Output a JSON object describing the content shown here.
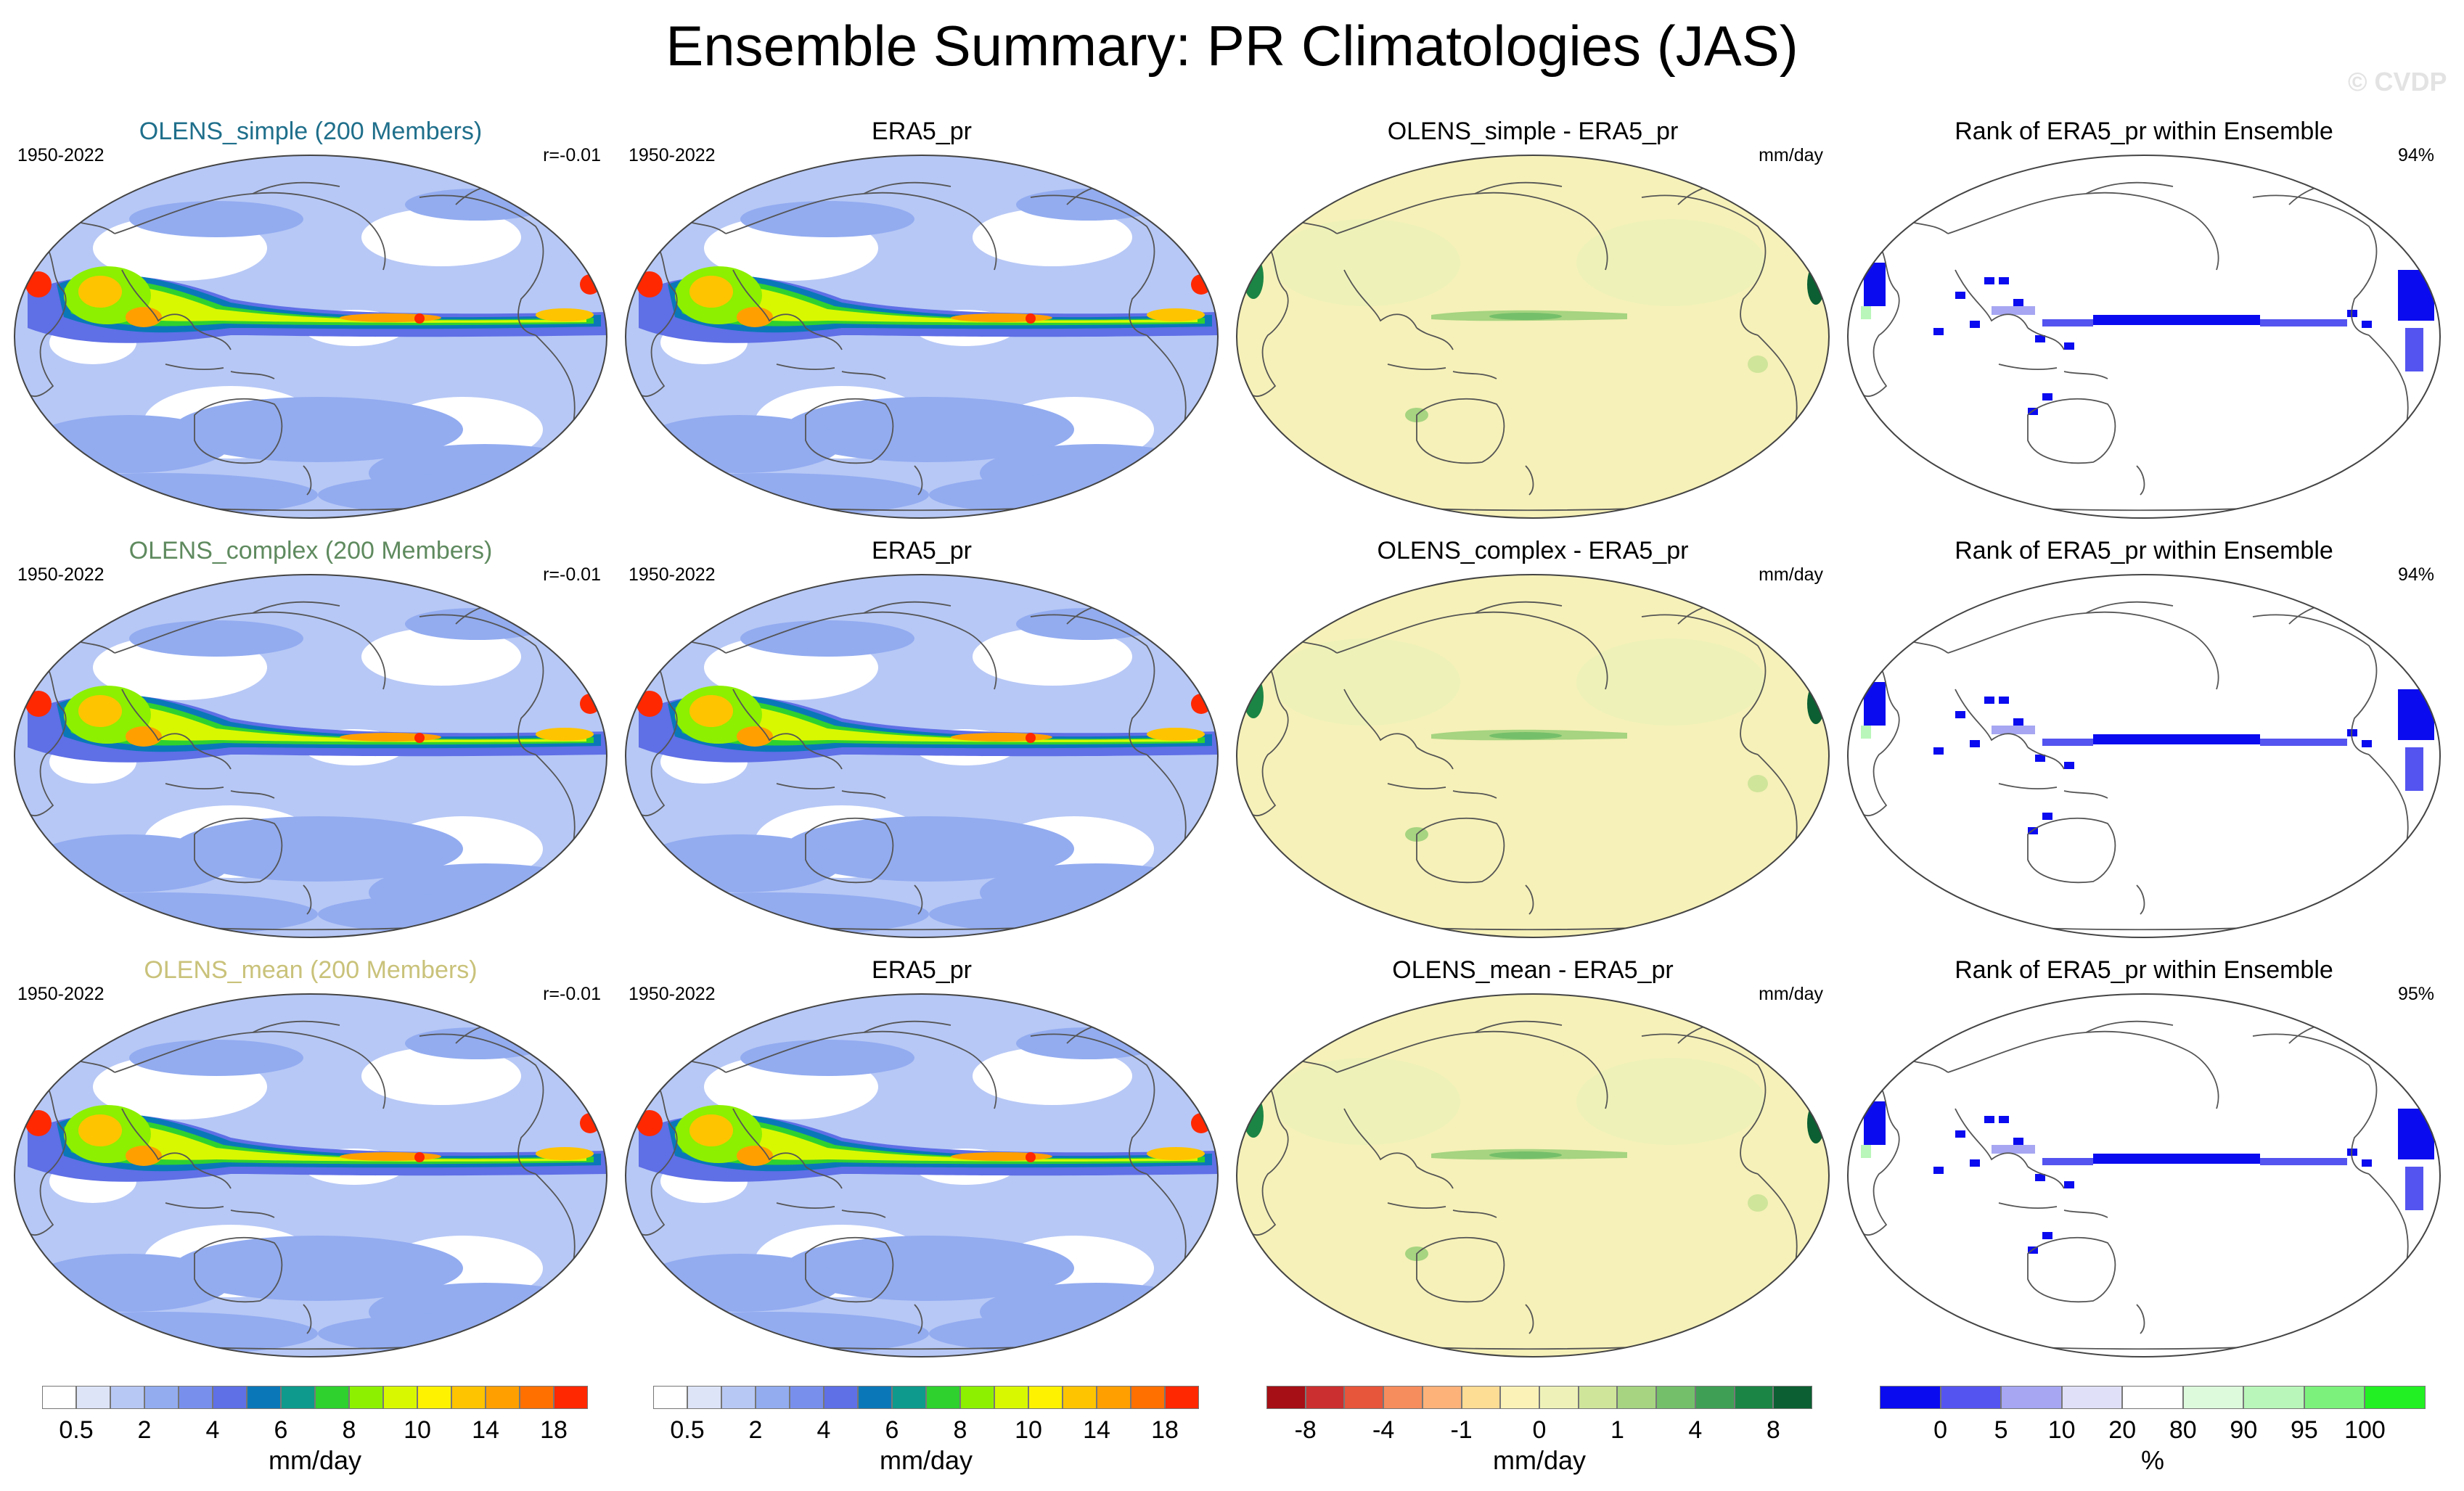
{
  "title": "Ensemble Summary: PR Climatologies (JAS)",
  "watermark": "© CVDP",
  "colors": {
    "olens_simple": "#1f6f8b",
    "olens_complex": "#5f8a5f",
    "olens_mean": "#c9c27a"
  },
  "rows": [
    {
      "model_title": "OLENS_simple (200 Members)",
      "model_period": "1950-2022",
      "model_corr": "r=-0.01",
      "obs_title": "ERA5_pr",
      "obs_period": "1950-2022",
      "diff_title": "OLENS_simple - ERA5_pr",
      "diff_unit": "mm/day",
      "rank_title": "Rank of ERA5_pr within Ensemble",
      "rank_pct": "94%"
    },
    {
      "model_title": "OLENS_complex (200 Members)",
      "model_period": "1950-2022",
      "model_corr": "r=-0.01",
      "obs_title": "ERA5_pr",
      "obs_period": "1950-2022",
      "diff_title": "OLENS_complex - ERA5_pr",
      "diff_unit": "mm/day",
      "rank_title": "Rank of ERA5_pr within Ensemble",
      "rank_pct": "94%"
    },
    {
      "model_title": "OLENS_mean (200 Members)",
      "model_period": "1950-2022",
      "model_corr": "r=-0.01",
      "obs_title": "ERA5_pr",
      "obs_period": "1950-2022",
      "diff_title": "OLENS_mean - ERA5_pr",
      "diff_unit": "mm/day",
      "rank_title": "Rank of ERA5_pr within Ensemble",
      "rank_pct": "95%"
    }
  ],
  "colorbars": [
    {
      "unit": "mm/day",
      "colors": [
        "#ffffff",
        "#dde4f8",
        "#b8c8f4",
        "#93acf0",
        "#7890ec",
        "#5f6fe6",
        "#0a78b8",
        "#0e9a8c",
        "#2fd12f",
        "#8cf000",
        "#d8f800",
        "#fff200",
        "#ffc400",
        "#ffa000",
        "#ff7000",
        "#ff2800"
      ],
      "ticks": [
        "0.5",
        "2",
        "4",
        "6",
        "8",
        "10",
        "14",
        "18"
      ]
    },
    {
      "unit": "mm/day",
      "colors": [
        "#ffffff",
        "#dde4f8",
        "#b8c8f4",
        "#93acf0",
        "#7890ec",
        "#5f6fe6",
        "#0a78b8",
        "#0e9a8c",
        "#2fd12f",
        "#8cf000",
        "#d8f800",
        "#fff200",
        "#ffc400",
        "#ffa000",
        "#ff7000",
        "#ff2800"
      ],
      "ticks": [
        "0.5",
        "2",
        "4",
        "6",
        "8",
        "10",
        "14",
        "18"
      ]
    },
    {
      "unit": "mm/day",
      "colors": [
        "#a50f15",
        "#cb2f2f",
        "#e7553a",
        "#f68d5c",
        "#fdb27a",
        "#fddc94",
        "#fbf2b8",
        "#eef2b8",
        "#cfe59a",
        "#a6d480",
        "#74bf6a",
        "#3fa055",
        "#1b8545",
        "#0b5f32"
      ],
      "ticks": [
        "-8",
        "-4",
        "-1",
        "0",
        "1",
        "4",
        "8"
      ]
    },
    {
      "unit": "%",
      "colors": [
        "#0b0bf0",
        "#5454f0",
        "#a6a6f2",
        "#e0e0f8",
        "#ffffff",
        "#ddfadd",
        "#b9f6b9",
        "#7cf27c",
        "#22f022"
      ],
      "ticks": [
        "0",
        "5",
        "10",
        "20",
        "80",
        "90",
        "95",
        "100"
      ]
    }
  ]
}
